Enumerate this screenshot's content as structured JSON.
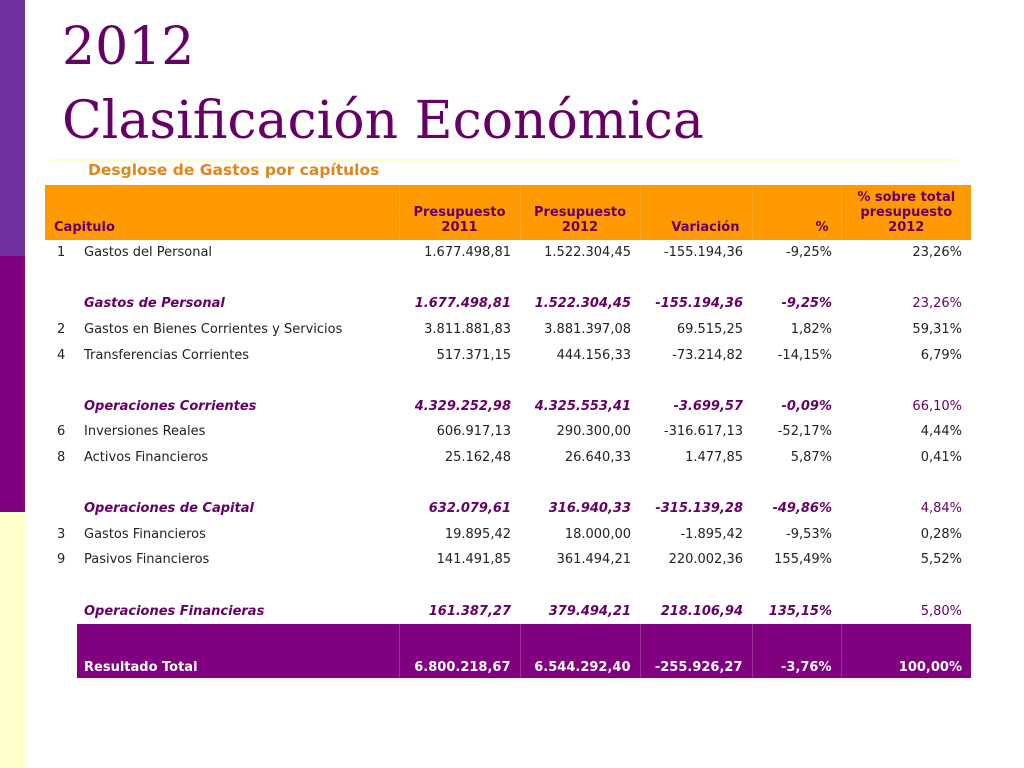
{
  "title": {
    "line1": "2012",
    "line2": "Clasificación Económica"
  },
  "subtitle": "Desglose de Gastos por capítulos",
  "table": {
    "headers": {
      "capitulo": "Capitulo",
      "pres2011_a": "Presupuesto",
      "pres2011_b": "2011",
      "pres2012_a": "Presupuesto",
      "pres2012_b": "2012",
      "variacion": "Variación",
      "pct": "%",
      "share_a": "% sobre total",
      "share_b": "presupuesto",
      "share_c": "2012"
    },
    "rows": [
      {
        "code": "1",
        "desc": "Gastos del Personal",
        "p2011": "1.677.498,81",
        "p2012": "1.522.304,45",
        "var": "-155.194,36",
        "pct": "-9,25%",
        "share": "23,26%"
      },
      {
        "code": "",
        "desc": "Gastos de Personal",
        "p2011": "1.677.498,81",
        "p2012": "1.522.304,45",
        "var": "-155.194,36",
        "pct": "-9,25%",
        "share": "23,26%"
      },
      {
        "code": "2",
        "desc": "Gastos en Bienes Corrientes y Servicios",
        "p2011": "3.811.881,83",
        "p2012": "3.881.397,08",
        "var": "69.515,25",
        "pct": "1,82%",
        "share": "59,31%"
      },
      {
        "code": "4",
        "desc": "Transferencias Corrientes",
        "p2011": "517.371,15",
        "p2012": "444.156,33",
        "var": "-73.214,82",
        "pct": "-14,15%",
        "share": "6,79%"
      },
      {
        "code": "",
        "desc": "Operaciones Corrientes",
        "p2011": "4.329.252,98",
        "p2012": "4.325.553,41",
        "var": "-3.699,57",
        "pct": "-0,09%",
        "share": "66,10%"
      },
      {
        "code": "6",
        "desc": "Inversiones Reales",
        "p2011": "606.917,13",
        "p2012": "290.300,00",
        "var": "-316.617,13",
        "pct": "-52,17%",
        "share": "4,44%"
      },
      {
        "code": "8",
        "desc": "Activos Financieros",
        "p2011": "25.162,48",
        "p2012": "26.640,33",
        "var": "1.477,85",
        "pct": "5,87%",
        "share": "0,41%"
      },
      {
        "code": "",
        "desc": "Operaciones de Capital",
        "p2011": "632.079,61",
        "p2012": "316.940,33",
        "var": "-315.139,28",
        "pct": "-49,86%",
        "share": "4,84%"
      },
      {
        "code": "3",
        "desc": "Gastos Financieros",
        "p2011": "19.895,42",
        "p2012": "18.000,00",
        "var": "-1.895,42",
        "pct": "-9,53%",
        "share": "0,28%"
      },
      {
        "code": "9",
        "desc": "Pasivos Financieros",
        "p2011": "141.491,85",
        "p2012": "361.494,21",
        "var": "220.002,36",
        "pct": "155,49%",
        "share": "5,52%"
      },
      {
        "code": "",
        "desc": "Operaciones Financieras",
        "p2011": "161.387,27",
        "p2012": "379.494,21",
        "var": "218.106,94",
        "pct": "135,15%",
        "share": "5,80%"
      }
    ],
    "total": {
      "desc": "Resultado Total",
      "p2011": "6.800.218,67",
      "p2012": "6.544.292,40",
      "var": "-255.926,27",
      "pct": "-3,76%",
      "share": "100,00%"
    }
  },
  "colors": {
    "title": "#660066",
    "header_bg": "#ff9900",
    "header_text": "#660066",
    "subtitle": "#e0861a",
    "total_bg": "#800080",
    "side_bar": [
      "#7030a0",
      "#800080",
      "#ffffcc"
    ]
  }
}
